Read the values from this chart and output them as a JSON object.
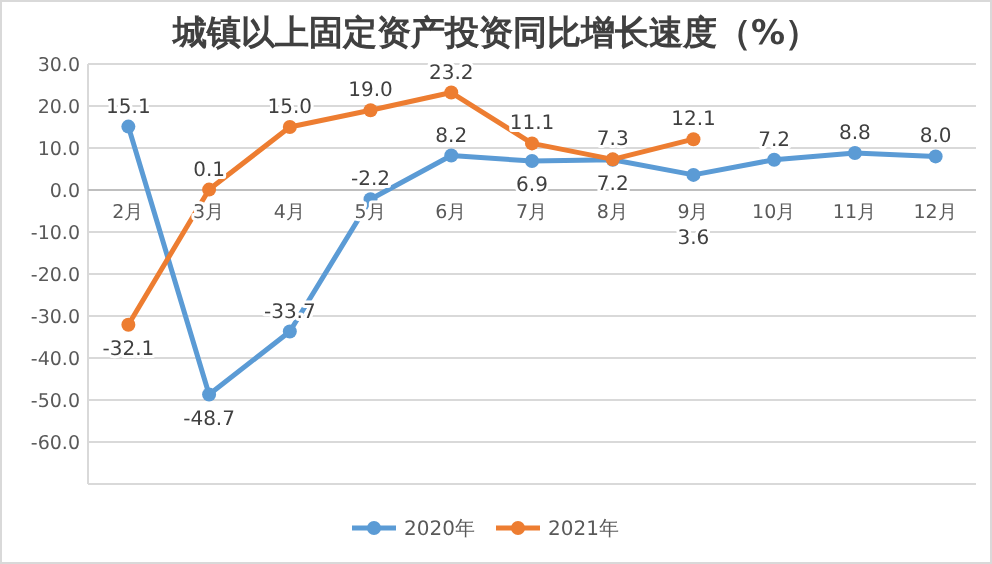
{
  "chart_data": {
    "type": "line",
    "title": "城镇以上固定资产投资同比增长速度（%）",
    "categories": [
      "2月",
      "3月",
      "4月",
      "5月",
      "6月",
      "7月",
      "8月",
      "9月",
      "10月",
      "11月",
      "12月"
    ],
    "series": [
      {
        "name": "2020年",
        "color": "#5b9bd5",
        "values": [
          15.1,
          -48.7,
          -33.7,
          -2.2,
          8.2,
          6.9,
          7.2,
          3.6,
          7.2,
          8.8,
          8.0
        ],
        "value_labels": [
          "15.1",
          "-48.7",
          "-33.7",
          "-2.2",
          "8.2",
          "6.9",
          "7.2",
          "3.6",
          "7.2",
          "8.8",
          "8.0"
        ]
      },
      {
        "name": "2021年",
        "color": "#ed7d31",
        "values": [
          -32.1,
          0.1,
          15.0,
          19.0,
          23.2,
          11.1,
          7.3,
          12.1,
          null,
          null,
          null
        ],
        "value_labels": [
          "-32.1",
          "0.1",
          "15.0",
          "19.0",
          "23.2",
          "11.1",
          "7.3",
          "12.1",
          null,
          null,
          null
        ]
      }
    ],
    "ylim": [
      -70,
      30
    ],
    "yticks": [
      {
        "value": -60,
        "label": "-60.0"
      },
      {
        "value": -50,
        "label": "-50.0"
      },
      {
        "value": -40,
        "label": "-40.0"
      },
      {
        "value": -30,
        "label": "-30.0"
      },
      {
        "value": -20,
        "label": "-20.0"
      },
      {
        "value": -10,
        "label": "-10.0"
      },
      {
        "value": 0,
        "label": "0.0"
      },
      {
        "value": 10,
        "label": "10.0"
      },
      {
        "value": 20,
        "label": "20.0"
      },
      {
        "value": 30,
        "label": "30.0"
      }
    ],
    "grid": "y",
    "legend": "bottom",
    "marker": "circle",
    "line_style": "solid"
  }
}
